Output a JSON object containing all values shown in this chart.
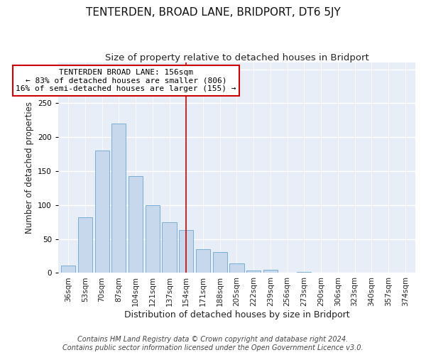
{
  "title": "TENTERDEN, BROAD LANE, BRIDPORT, DT6 5JY",
  "subtitle": "Size of property relative to detached houses in Bridport",
  "xlabel": "Distribution of detached houses by size in Bridport",
  "ylabel": "Number of detached properties",
  "categories": [
    "36sqm",
    "53sqm",
    "70sqm",
    "87sqm",
    "104sqm",
    "121sqm",
    "137sqm",
    "154sqm",
    "171sqm",
    "188sqm",
    "205sqm",
    "222sqm",
    "239sqm",
    "256sqm",
    "273sqm",
    "290sqm",
    "306sqm",
    "323sqm",
    "340sqm",
    "357sqm",
    "374sqm"
  ],
  "values": [
    11,
    82,
    180,
    220,
    143,
    100,
    75,
    63,
    35,
    31,
    14,
    4,
    5,
    0,
    2,
    0,
    1,
    0,
    0,
    1,
    0
  ],
  "bar_color": "#c8d8ec",
  "bar_edge_color": "#7aaed4",
  "vline_x_index": 7,
  "vline_color": "#cc0000",
  "annotation_line1": "TENTERDEN BROAD LANE: 156sqm",
  "annotation_line2": "← 83% of detached houses are smaller (806)",
  "annotation_line3": "16% of semi-detached houses are larger (155) →",
  "footer_line1": "Contains HM Land Registry data © Crown copyright and database right 2024.",
  "footer_line2": "Contains public sector information licensed under the Open Government Licence v3.0.",
  "ylim": [
    0,
    310
  ],
  "background_color": "#ffffff",
  "plot_background_color": "#e8eef8",
  "title_fontsize": 11,
  "subtitle_fontsize": 9.5,
  "ylabel_fontsize": 8.5,
  "xlabel_fontsize": 9,
  "tick_fontsize": 7.5,
  "footer_fontsize": 7,
  "annotation_fontsize": 8
}
